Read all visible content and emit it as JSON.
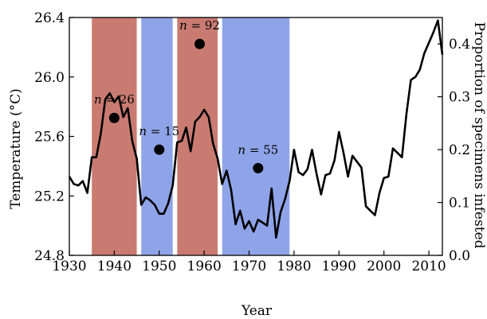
{
  "chart_data": {
    "type": "line",
    "xlabel": "Year",
    "ylabel_left": "Temperature (°C)",
    "ylabel_right": "Proportion of specimens infested",
    "xlim": [
      1930,
      2013
    ],
    "ylim_left": [
      24.8,
      26.4
    ],
    "ylim_right": [
      0.0,
      0.45
    ],
    "x_ticks": [
      "1930",
      "1940",
      "1950",
      "1960",
      "1970",
      "1980",
      "1990",
      "2000",
      "2010"
    ],
    "y_left_ticks": [
      "24.8",
      "25.2",
      "25.6",
      "26.0",
      "26.4"
    ],
    "y_right_ticks": [
      "0.0",
      "0.1",
      "0.2",
      "0.3",
      "0.4"
    ],
    "grid": false,
    "colors": {
      "red_band": "#c97b72",
      "blue_band": "#8fa4e8",
      "line": "#000000"
    },
    "shaded_periods": [
      {
        "start": 1935,
        "end": 1945,
        "color": "red"
      },
      {
        "start": 1946,
        "end": 1953,
        "color": "blue"
      },
      {
        "start": 1954,
        "end": 1963,
        "color": "red"
      },
      {
        "start": 1964,
        "end": 1979,
        "color": "blue"
      }
    ],
    "temperature_series": {
      "x": [
        1930,
        1931,
        1932,
        1933,
        1934,
        1935,
        1936,
        1937,
        1938,
        1939,
        1940,
        1941,
        1942,
        1943,
        1944,
        1945,
        1946,
        1947,
        1948,
        1949,
        1950,
        1951,
        1952,
        1953,
        1954,
        1955,
        1956,
        1957,
        1958,
        1959,
        1960,
        1961,
        1962,
        1963,
        1964,
        1965,
        1966,
        1967,
        1968,
        1969,
        1970,
        1971,
        1972,
        1973,
        1974,
        1975,
        1976,
        1977,
        1978,
        1979,
        1980,
        1981,
        1982,
        1983,
        1984,
        1985,
        1986,
        1987,
        1988,
        1989,
        1990,
        1991,
        1992,
        1993,
        1994,
        1995,
        1996,
        1997,
        1998,
        1999,
        2000,
        2001,
        2002,
        2003,
        2004,
        2005,
        2006,
        2007,
        2008,
        2009,
        2010,
        2011,
        2012,
        2013
      ],
      "y": [
        25.33,
        25.28,
        25.27,
        25.3,
        25.22,
        25.46,
        25.46,
        25.62,
        25.85,
        25.89,
        25.83,
        25.87,
        25.73,
        25.79,
        25.57,
        25.45,
        25.14,
        25.19,
        25.17,
        25.14,
        25.08,
        25.08,
        25.15,
        25.27,
        25.56,
        25.57,
        25.66,
        25.5,
        25.7,
        25.73,
        25.78,
        25.73,
        25.55,
        25.45,
        25.28,
        25.37,
        25.24,
        25.01,
        25.1,
        24.98,
        25.03,
        24.96,
        25.04,
        25.02,
        25.0,
        25.25,
        24.92,
        25.09,
        25.18,
        25.3,
        25.51,
        25.36,
        25.34,
        25.38,
        25.51,
        25.35,
        25.21,
        25.34,
        25.35,
        25.44,
        25.63,
        25.49,
        25.33,
        25.47,
        25.43,
        25.39,
        25.13,
        25.1,
        25.07,
        25.22,
        25.32,
        25.33,
        25.52,
        25.49,
        25.46,
        25.75,
        25.98,
        26.0,
        26.05,
        26.16,
        26.23,
        26.3,
        26.38,
        26.15
      ]
    },
    "infestation_points": [
      {
        "x": 1940,
        "y": 0.26,
        "n_text": "= 26",
        "n_prefix": "n"
      },
      {
        "x": 1950,
        "y": 0.2,
        "n_text": "= 15",
        "n_prefix": "n"
      },
      {
        "x": 1959,
        "y": 0.4,
        "n_text": "= 92",
        "n_prefix": "n"
      },
      {
        "x": 1972,
        "y": 0.165,
        "n_text": "= 55",
        "n_prefix": "n"
      }
    ]
  }
}
